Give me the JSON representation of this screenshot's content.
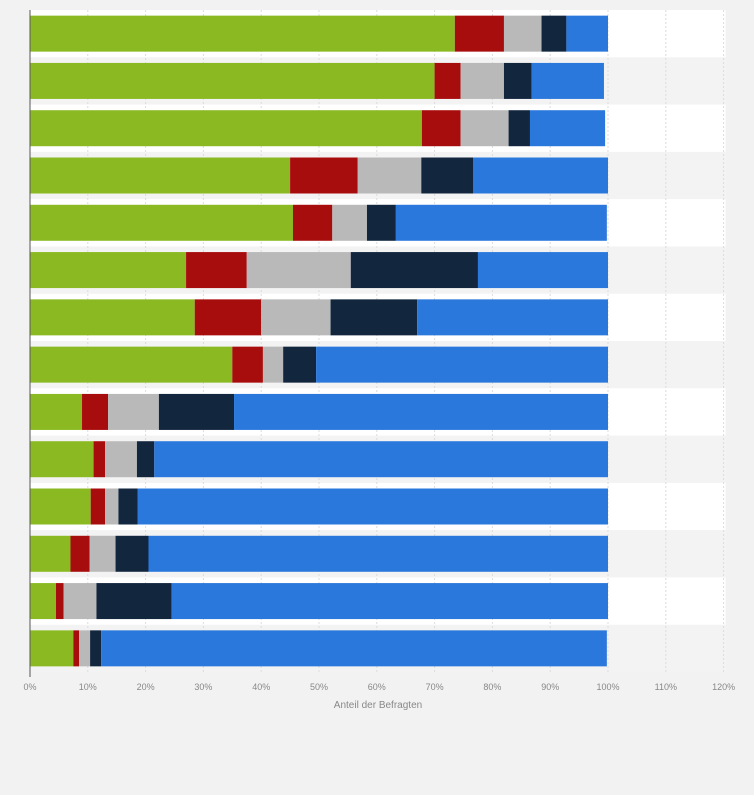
{
  "chart_data": {
    "type": "bar",
    "orientation": "horizontal",
    "stacked": true,
    "xlabel": "Anteil der Befragten",
    "ylabel": "",
    "xlim": [
      0,
      120
    ],
    "tick_values": [
      0,
      10,
      20,
      30,
      40,
      50,
      60,
      70,
      80,
      90,
      100,
      110,
      120
    ],
    "tick_labels": [
      "0%",
      "10%",
      "20%",
      "30%",
      "40%",
      "50%",
      "60%",
      "70%",
      "80%",
      "90%",
      "100%",
      "110%",
      "120%"
    ],
    "grid": true,
    "legend": "none",
    "categories": [
      "",
      "",
      "",
      "",
      "",
      "",
      "",
      "",
      "",
      "",
      "",
      "",
      "",
      ""
    ],
    "series": [
      {
        "color": "#8ab922",
        "values": [
          73.5,
          70.0,
          67.8,
          45.0,
          45.5,
          27.0,
          28.5,
          35.0,
          9.0,
          11.0,
          10.5,
          7.0,
          4.5,
          7.5
        ]
      },
      {
        "color": "#a80d0d",
        "values": [
          8.5,
          4.5,
          6.7,
          11.7,
          6.8,
          10.5,
          11.5,
          5.3,
          4.5,
          2.0,
          2.5,
          3.3,
          1.3,
          1.0
        ]
      },
      {
        "color": "#b9b9b9",
        "values": [
          6.5,
          7.5,
          8.3,
          11.0,
          6.0,
          18.0,
          12.0,
          3.5,
          8.8,
          5.5,
          2.3,
          4.5,
          5.7,
          1.9
        ]
      },
      {
        "color": "#12263e",
        "values": [
          4.3,
          4.8,
          3.7,
          9.0,
          5.0,
          22.0,
          15.0,
          5.7,
          13.0,
          3.0,
          3.3,
          5.7,
          13.0,
          1.9
        ]
      },
      {
        "color": "#2a78dc",
        "values": [
          7.2,
          12.5,
          13.0,
          23.3,
          36.5,
          22.5,
          33.0,
          50.5,
          64.7,
          78.5,
          81.4,
          79.5,
          75.5,
          87.5
        ]
      }
    ]
  }
}
